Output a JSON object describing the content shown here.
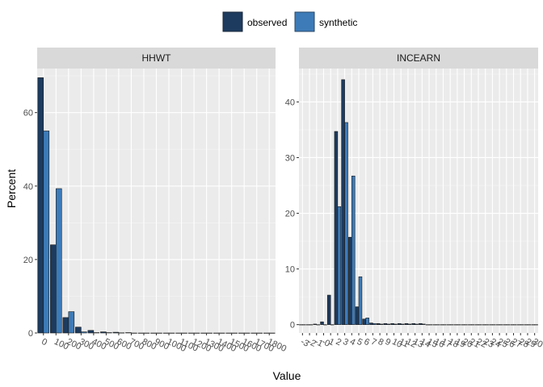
{
  "chart_data": {
    "type": "bar",
    "xlabel": "Value",
    "ylabel": "Percent",
    "grid": true,
    "legend_position": "top",
    "legend": [
      {
        "name": "observed",
        "color": "#1d3b5e"
      },
      {
        "name": "synthetic",
        "color": "#3d7bb8"
      }
    ],
    "panels": [
      {
        "title": "HHWT",
        "ylim": [
          0,
          72
        ],
        "yticks": [
          0,
          20,
          40,
          60
        ],
        "categories": [
          "0",
          "100",
          "200",
          "300",
          "400",
          "500",
          "600",
          "700",
          "800",
          "900",
          "1000",
          "1100",
          "1200",
          "1300",
          "1400",
          "1500",
          "1600",
          "1700",
          "1800"
        ],
        "series": [
          {
            "name": "observed",
            "values": [
              69.5,
              24.0,
              4.2,
              1.6,
              0.7,
              0.3,
              0.2,
              0.1,
              0,
              0,
              0,
              0,
              0,
              0,
              0,
              0,
              0,
              0,
              0
            ]
          },
          {
            "name": "synthetic",
            "values": [
              55.0,
              39.3,
              5.8,
              0.3,
              0.1,
              0.1,
              0.05,
              0,
              0,
              0,
              0,
              0,
              0,
              0,
              0,
              0,
              0,
              0,
              0
            ]
          }
        ]
      },
      {
        "title": "INCEARN",
        "ylim": [
          -1.5,
          46
        ],
        "yticks": [
          0,
          10,
          20,
          30,
          40
        ],
        "categories": [
          "-3",
          "-2",
          "-1",
          "-0",
          "1",
          "2",
          "3",
          "4",
          "5",
          "6",
          "7",
          "8",
          "9",
          "10",
          "11",
          "12",
          "13",
          "14",
          "15",
          "16",
          "17",
          "18",
          "19",
          "20",
          "21",
          "22",
          "23",
          "24",
          "25",
          "26",
          "27",
          "28",
          "29",
          "30"
        ],
        "series": [
          {
            "name": "observed",
            "values": [
              0,
              0,
              0.1,
              0.5,
              5.3,
              34.7,
              44.0,
              15.7,
              3.2,
              1.0,
              0.3,
              0.2,
              0.2,
              0.2,
              0.2,
              0.2,
              0.2,
              0.2,
              0,
              0,
              0,
              0,
              0,
              0,
              0,
              0,
              0,
              0,
              0,
              0,
              0,
              0,
              0,
              0
            ]
          },
          {
            "name": "synthetic",
            "values": [
              0,
              0,
              0,
              0,
              0,
              21.2,
              36.3,
              26.7,
              8.6,
              1.2,
              0.2,
              0.1,
              0.1,
              0.1,
              0.1,
              0.1,
              0.1,
              0.1,
              0,
              0,
              0,
              0,
              0,
              0,
              0,
              0,
              0,
              0,
              0,
              0,
              0,
              0,
              0,
              0
            ]
          }
        ]
      }
    ]
  }
}
